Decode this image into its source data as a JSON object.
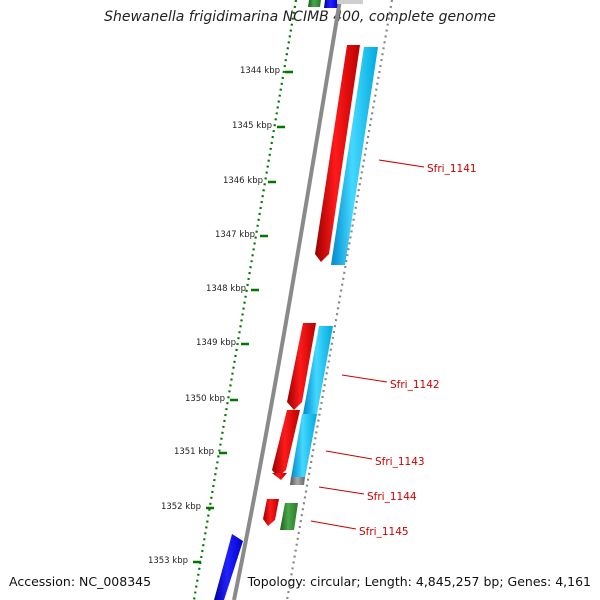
{
  "title": "Shewanella frigidimarina NCIMB 400, complete genome",
  "footer": {
    "accession": "Accession: NC_008345",
    "stats": "Topology: circular; Length: 4,845,257 bp; Genes: 4,161"
  },
  "scale_labels": [
    "1344 kbp",
    "1345 kbp",
    "1346 kbp",
    "1347 kbp",
    "1348 kbp",
    "1349 kbp",
    "1350 kbp",
    "1351 kbp",
    "1352 kbp",
    "1353 kbp"
  ],
  "genes": [
    {
      "label": "Sfri_1141"
    },
    {
      "label": "Sfri_1142"
    },
    {
      "label": "Sfri_1143"
    },
    {
      "label": "Sfri_1144"
    },
    {
      "label": "Sfri_1145"
    }
  ],
  "colors": {
    "backbone": "#8a8a8a",
    "cds_red": "#ee0000",
    "cds_cyan": "#33ccff",
    "gene_green": "#338833",
    "gene_blue": "#0000ee",
    "scale_green": "#007700",
    "label_red": "#cc0000"
  }
}
